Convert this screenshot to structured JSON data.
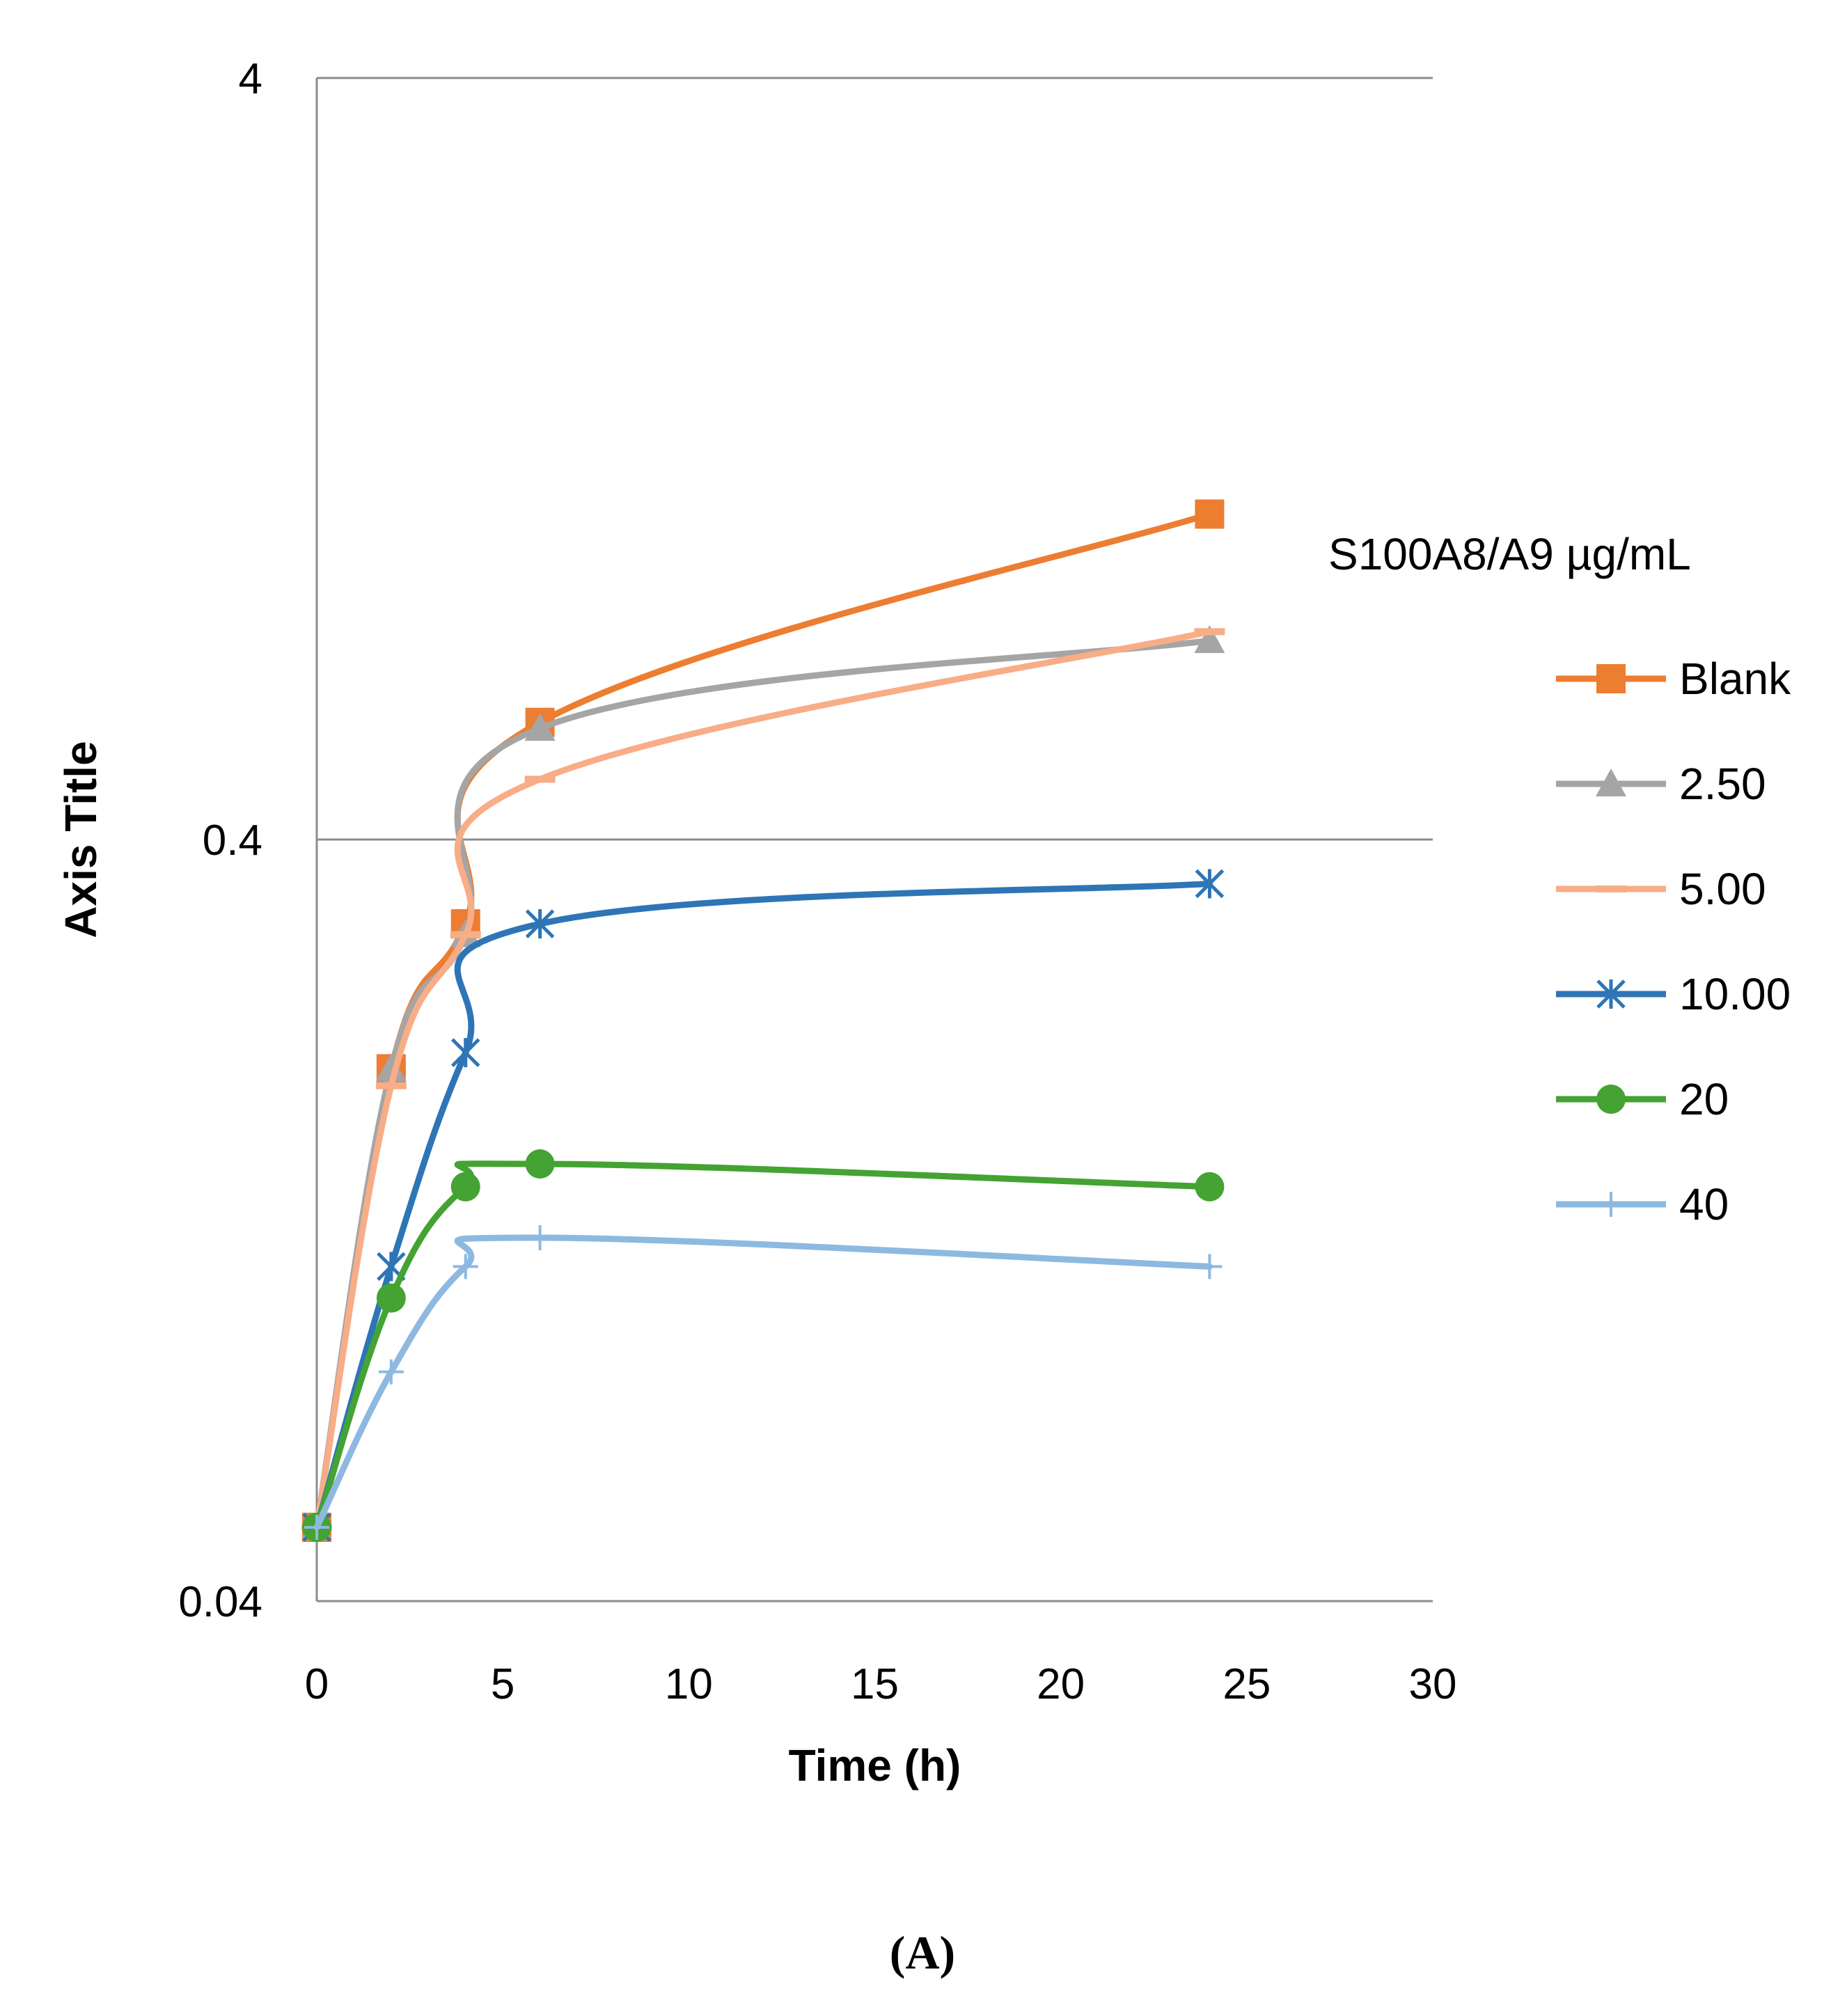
{
  "chart_data": {
    "type": "line",
    "title": "",
    "xlabel": "Time (h)",
    "ylabel": "Axis Title",
    "yscale": "log",
    "xlim": [
      0,
      30
    ],
    "ylim": [
      0.04,
      4
    ],
    "xticks": [
      0,
      5,
      10,
      15,
      20,
      25,
      30
    ],
    "yticks": [
      0.04,
      0.4,
      4
    ],
    "xtick_labels": [
      "0",
      "5",
      "10",
      "15",
      "20",
      "25",
      "30"
    ],
    "ytick_labels": [
      "0.04",
      "0.4",
      "4"
    ],
    "grid": "horizontal major gridlines",
    "legend_title": "S100A8/A9 µg/mL",
    "legend_position": "right",
    "panel_label": "(A)",
    "x": [
      0,
      2,
      4,
      6,
      24
    ],
    "series": [
      {
        "name": "Blank",
        "color": "#ED7D31",
        "marker": "square",
        "values": [
          0.05,
          0.2,
          0.31,
          0.57,
          1.07
        ]
      },
      {
        "name": "2.50",
        "color": "#A5A5A5",
        "marker": "triangle",
        "values": [
          0.05,
          0.2,
          0.3,
          0.56,
          0.73
        ]
      },
      {
        "name": "5.00",
        "color": "#F8AD87",
        "marker": "dash",
        "values": [
          0.05,
          0.19,
          0.3,
          0.48,
          0.75
        ]
      },
      {
        "name": "10.00",
        "color": "#2E75B6",
        "marker": "asterisk",
        "values": [
          0.05,
          0.11,
          0.21,
          0.31,
          0.35
        ]
      },
      {
        "name": "20",
        "color": "#44A332",
        "marker": "circle",
        "values": [
          0.05,
          0.1,
          0.14,
          0.15,
          0.14
        ]
      },
      {
        "name": "40",
        "color": "#8DB9E1",
        "marker": "plus",
        "values": [
          0.05,
          0.08,
          0.11,
          0.12,
          0.11
        ]
      }
    ]
  }
}
